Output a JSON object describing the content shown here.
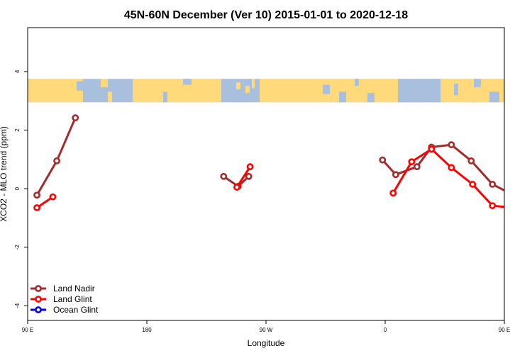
{
  "chart_data": {
    "type": "line",
    "title": "45N-60N December (Ver 10)   2015-01-01 to 2020-12-18",
    "xlabel": "Longitude",
    "ylabel": "XCO2 - MLO trend (ppm)",
    "xlim": [
      90,
      450
    ],
    "ylim": [
      -4.5,
      5.5
    ],
    "x_ticks": [
      {
        "value": 90,
        "label": "90 E"
      },
      {
        "value": 180,
        "label": "180"
      },
      {
        "value": 270,
        "label": "90 W"
      },
      {
        "value": 360,
        "label": "0"
      },
      {
        "value": 450,
        "label": "90 E"
      },
      {
        "value": 540,
        "label": "180"
      }
    ],
    "y_ticks": [
      {
        "value": -4,
        "label": "-4"
      },
      {
        "value": -2,
        "label": "-2"
      },
      {
        "value": 0,
        "label": "0"
      },
      {
        "value": 2,
        "label": "2"
      },
      {
        "value": 4,
        "label": "4"
      }
    ],
    "grid": false,
    "legend_position": "bottom-left",
    "map_band": {
      "y_range": [
        2.95,
        3.75
      ],
      "ocean_color": "#a8bfdd",
      "land_color": "#ffd97a"
    },
    "series": [
      {
        "name": "Land Nadir",
        "color": "#a52a2a",
        "segments": [
          [
            [
              97,
              -0.22
            ],
            [
              112,
              0.95
            ],
            [
              126,
              2.42
            ]
          ],
          [
            [
              238,
              0.42
            ],
            [
              249,
              0.08
            ],
            [
              257,
              0.42
            ]
          ],
          [
            [
              358,
              0.98
            ],
            [
              368,
              0.48
            ],
            [
              384,
              0.75
            ],
            [
              395,
              1.42
            ],
            [
              410,
              1.5
            ],
            [
              425,
              0.95
            ],
            [
              441,
              0.15
            ],
            [
              457,
              -0.22
            ],
            [
              471,
              0.95
            ],
            [
              485,
              2.42
            ]
          ]
        ]
      },
      {
        "name": "Land Glint",
        "color": "#ff0000",
        "segments": [
          [
            [
              97,
              -0.65
            ],
            [
              109,
              -0.28
            ]
          ],
          [
            [
              248,
              0.05
            ],
            [
              258,
              0.75
            ]
          ],
          [
            [
              366,
              -0.15
            ],
            [
              380,
              0.92
            ],
            [
              395,
              1.35
            ],
            [
              410,
              0.72
            ],
            [
              426,
              0.15
            ],
            [
              441,
              -0.58
            ],
            [
              456,
              -0.65
            ],
            [
              469,
              -0.28
            ]
          ]
        ]
      },
      {
        "name": "Ocean Glint",
        "color": "#0000ff",
        "segments": []
      }
    ]
  }
}
